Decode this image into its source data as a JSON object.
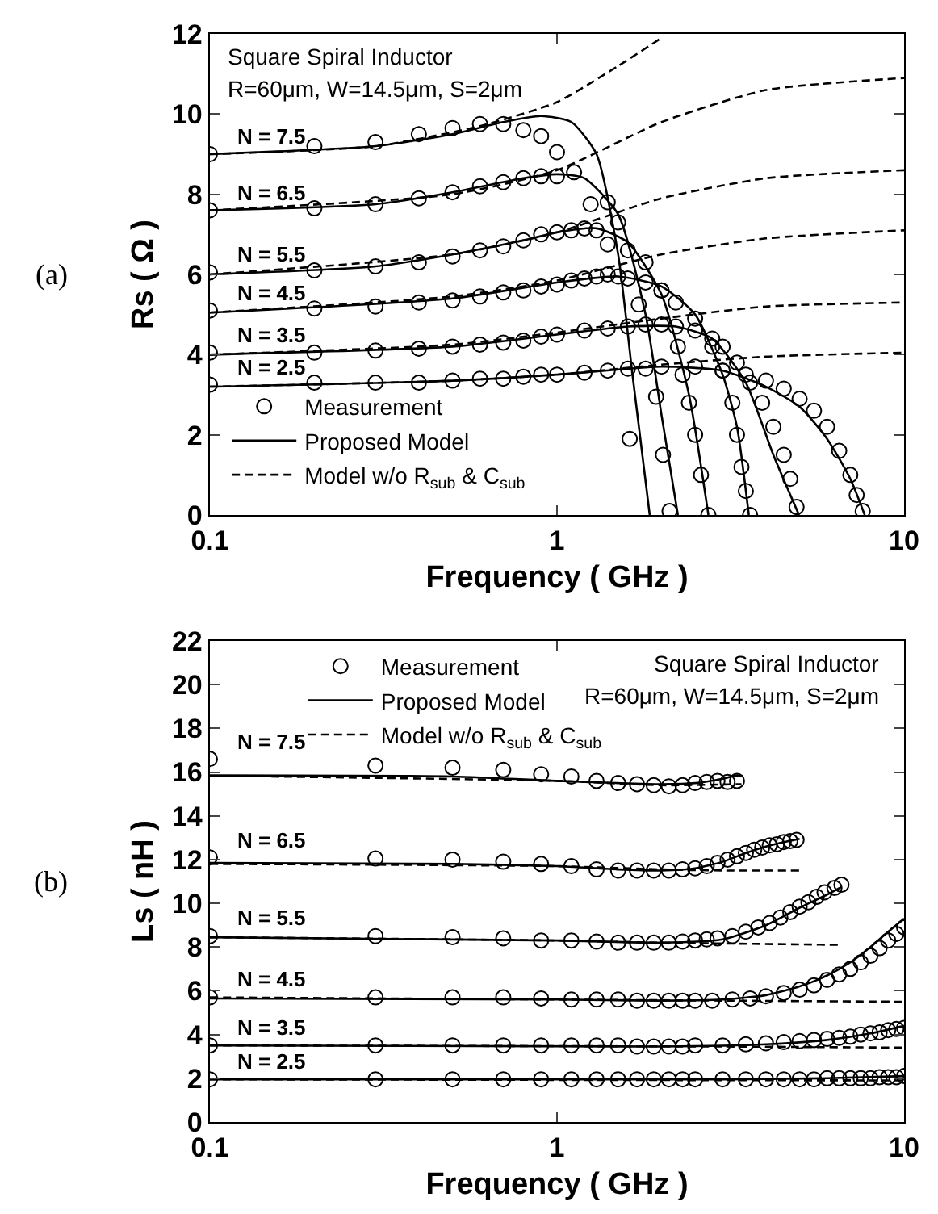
{
  "chart_data": [
    {
      "type": "line",
      "xlabel": "Frequency ( GHz )",
      "ylabel": "Rs ( Ω )",
      "xlim": [
        0.1,
        10
      ],
      "ylim": [
        0,
        12
      ],
      "log": "x",
      "xticks": [
        0.1,
        1,
        10
      ],
      "yticks": [
        0,
        2,
        4,
        6,
        8,
        10,
        12
      ],
      "grid": false,
      "legend": "bottom left",
      "annotations": [
        "(a)",
        "Square Spiral Inductor",
        "R=60μm, W=14.5μm, S=2μm",
        "N = 7.5",
        "N = 6.5",
        "N = 5.5",
        "N = 4.5",
        "N = 3.5",
        "N = 2.5"
      ],
      "series": [
        {
          "name": "Measurement",
          "type": "scatter",
          "marker": "circle",
          "color": "#000000",
          "x": [
            0.1,
            0.2,
            0.3,
            0.4,
            0.5,
            0.6,
            0.7,
            0.8,
            0.9,
            1.0,
            1.12,
            1.62
          ],
          "values": [
            9.0,
            9.2,
            9.3,
            9.5,
            9.65,
            9.75,
            9.75,
            9.6,
            9.45,
            9.05,
            8.55,
            1.9
          ]
        },
        {
          "type": "scatter",
          "marker": "circle",
          "color": "#000000",
          "x": [
            0.1,
            0.2,
            0.3,
            0.4,
            0.5,
            0.6,
            0.7,
            0.8,
            0.9,
            1.0,
            1.25,
            1.4,
            1.5,
            1.72,
            1.93,
            2.02,
            2.11
          ],
          "values": [
            7.6,
            7.65,
            7.75,
            7.9,
            8.05,
            8.2,
            8.3,
            8.4,
            8.45,
            8.45,
            7.75,
            7.8,
            7.3,
            5.25,
            2.95,
            1.5,
            0.1
          ]
        },
        {
          "type": "scatter",
          "marker": "circle",
          "color": "#000000",
          "x": [
            0.1,
            0.2,
            0.3,
            0.4,
            0.5,
            0.6,
            0.7,
            0.8,
            0.9,
            1.0,
            1.1,
            1.2,
            1.3,
            1.4,
            1.6,
            1.8,
            2.0,
            2.23,
            2.3,
            2.4,
            2.5,
            2.6,
            2.73
          ],
          "values": [
            6.05,
            6.1,
            6.2,
            6.3,
            6.45,
            6.6,
            6.7,
            6.85,
            7.0,
            7.05,
            7.1,
            7.15,
            7.1,
            6.75,
            6.6,
            6.3,
            5.6,
            4.2,
            3.5,
            2.8,
            2.0,
            1.0,
            0.0
          ]
        },
        {
          "type": "scatter",
          "marker": "circle",
          "color": "#000000",
          "x": [
            0.1,
            0.2,
            0.3,
            0.4,
            0.5,
            0.6,
            0.7,
            0.8,
            0.9,
            1.0,
            1.1,
            1.2,
            1.3,
            1.4,
            1.5,
            1.6,
            1.8,
            2.0,
            2.2,
            2.5,
            2.8,
            3.0,
            3.2,
            3.3,
            3.4,
            3.5,
            3.6
          ],
          "values": [
            5.1,
            5.15,
            5.2,
            5.3,
            5.35,
            5.45,
            5.55,
            5.6,
            5.7,
            5.75,
            5.85,
            5.9,
            5.95,
            6.0,
            5.95,
            5.9,
            5.8,
            5.6,
            5.3,
            4.9,
            4.2,
            3.6,
            2.8,
            2.0,
            1.2,
            0.6,
            0.0
          ]
        },
        {
          "type": "scatter",
          "marker": "circle",
          "color": "#000000",
          "x": [
            0.1,
            0.2,
            0.3,
            0.4,
            0.5,
            0.6,
            0.7,
            0.8,
            0.9,
            1.0,
            1.2,
            1.4,
            1.6,
            1.8,
            2.0,
            2.2,
            2.5,
            2.8,
            3.0,
            3.3,
            3.6,
            3.9,
            4.2,
            4.5,
            4.7,
            4.9
          ],
          "values": [
            4.05,
            4.05,
            4.1,
            4.15,
            4.2,
            4.25,
            4.3,
            4.35,
            4.45,
            4.5,
            4.6,
            4.65,
            4.7,
            4.75,
            4.75,
            4.7,
            4.6,
            4.4,
            4.2,
            3.8,
            3.3,
            2.8,
            2.2,
            1.5,
            0.9,
            0.2
          ]
        },
        {
          "type": "scatter",
          "marker": "circle",
          "color": "#000000",
          "x": [
            0.1,
            0.2,
            0.3,
            0.4,
            0.5,
            0.6,
            0.7,
            0.8,
            0.9,
            1.0,
            1.2,
            1.4,
            1.6,
            1.8,
            2.0,
            2.5,
            3.0,
            3.5,
            4.0,
            4.5,
            5.0,
            5.5,
            6.0,
            6.5,
            7.0,
            7.3,
            7.6
          ],
          "values": [
            3.25,
            3.3,
            3.3,
            3.3,
            3.35,
            3.4,
            3.4,
            3.45,
            3.5,
            3.5,
            3.55,
            3.6,
            3.65,
            3.65,
            3.7,
            3.7,
            3.6,
            3.5,
            3.35,
            3.15,
            2.9,
            2.6,
            2.2,
            1.6,
            1.0,
            0.5,
            0.1
          ]
        },
        {
          "name": "Proposed Model",
          "line_style": "solid",
          "color": "#000000",
          "x": [
            0.1,
            0.3,
            0.5,
            0.7,
            0.9,
            1.1,
            1.3,
            1.5,
            1.65,
            1.85
          ],
          "values": [
            9.0,
            9.2,
            9.5,
            9.8,
            9.95,
            9.8,
            9.0,
            6.5,
            3.5,
            0
          ]
        },
        {
          "line_style": "solid",
          "color": "#000000",
          "x": [
            0.1,
            0.3,
            0.5,
            0.8,
            1.0,
            1.2,
            1.5,
            1.8,
            2.0,
            2.23
          ],
          "values": [
            7.6,
            7.75,
            8.05,
            8.4,
            8.5,
            8.4,
            7.5,
            5.0,
            2.5,
            0
          ]
        },
        {
          "line_style": "solid",
          "color": "#000000",
          "x": [
            0.1,
            0.3,
            0.5,
            0.8,
            1.0,
            1.3,
            1.6,
            2.0,
            2.4,
            2.73
          ],
          "values": [
            6.0,
            6.2,
            6.5,
            6.85,
            7.05,
            7.15,
            6.8,
            5.5,
            3.0,
            0
          ]
        },
        {
          "line_style": "solid",
          "color": "#000000",
          "x": [
            0.1,
            0.5,
            1.0,
            1.5,
            2.0,
            2.5,
            3.0,
            3.3,
            3.57
          ],
          "values": [
            5.05,
            5.4,
            5.8,
            5.95,
            5.7,
            5.0,
            3.5,
            2.2,
            0
          ]
        },
        {
          "line_style": "solid",
          "color": "#000000",
          "x": [
            0.1,
            0.5,
            1.0,
            1.6,
            2.2,
            2.8,
            3.5,
            4.2,
            4.98
          ],
          "values": [
            4.0,
            4.2,
            4.5,
            4.7,
            4.7,
            4.4,
            3.3,
            1.5,
            0
          ]
        },
        {
          "line_style": "solid",
          "color": "#000000",
          "x": [
            0.1,
            0.5,
            1.0,
            2.0,
            3.0,
            4.0,
            5.0,
            6.0,
            7.0,
            7.7
          ],
          "values": [
            3.2,
            3.35,
            3.5,
            3.7,
            3.6,
            3.2,
            2.7,
            1.9,
            0.9,
            0
          ]
        },
        {
          "name": "Model w/o R$_{sub}$ & C$_{sub}$",
          "line_style": "dashed",
          "color": "#000000",
          "x": [
            0.1,
            0.3,
            0.6,
            1.0,
            1.5,
            2.0
          ],
          "values": [
            9.0,
            9.2,
            9.7,
            10.3,
            11.2,
            11.9
          ]
        },
        {
          "line_style": "dashed",
          "color": "#000000",
          "x": [
            0.1,
            0.5,
            1.0,
            2.0,
            4.0,
            10.0
          ],
          "values": [
            7.6,
            8.0,
            8.6,
            9.8,
            10.6,
            10.9
          ]
        },
        {
          "line_style": "dashed",
          "color": "#000000",
          "x": [
            0.1,
            0.5,
            1.0,
            2.0,
            4.0,
            10.0
          ],
          "values": [
            6.0,
            6.5,
            7.05,
            7.9,
            8.4,
            8.6
          ]
        },
        {
          "line_style": "dashed",
          "color": "#000000",
          "x": [
            0.1,
            0.5,
            1.0,
            2.0,
            4.0,
            10.0
          ],
          "values": [
            5.05,
            5.45,
            5.85,
            6.5,
            6.9,
            7.1
          ]
        },
        {
          "line_style": "dashed",
          "color": "#000000",
          "x": [
            0.1,
            0.5,
            1.0,
            2.0,
            4.0,
            10.0
          ],
          "values": [
            4.0,
            4.25,
            4.55,
            4.9,
            5.2,
            5.3
          ]
        },
        {
          "line_style": "dashed",
          "color": "#000000",
          "x": [
            0.1,
            0.5,
            1.0,
            2.0,
            4.0,
            10.0
          ],
          "values": [
            3.2,
            3.35,
            3.5,
            3.75,
            3.95,
            4.05
          ]
        }
      ]
    },
    {
      "type": "line",
      "xlabel": "Frequency ( GHz )",
      "ylabel": "Ls ( nH )",
      "xlim": [
        0.1,
        10
      ],
      "ylim": [
        0,
        22
      ],
      "log": "x",
      "xticks": [
        0.1,
        1,
        10
      ],
      "yticks": [
        0,
        2,
        4,
        6,
        8,
        10,
        12,
        14,
        16,
        18,
        20,
        22
      ],
      "grid": false,
      "legend": "top left",
      "annotations": [
        "(b)",
        "Square Spiral Inductor",
        "R=60μm, W=14.5μm, S=2μm",
        "N = 7.5",
        "N = 6.5",
        "N = 5.5",
        "N = 4.5",
        "N = 3.5",
        "N = 2.5"
      ],
      "series": [
        {
          "name": "Measurement",
          "type": "scatter",
          "marker": "circle",
          "color": "#000000",
          "x": [
            0.1,
            0.3,
            0.5,
            0.7,
            0.9,
            1.1,
            1.3,
            1.5,
            1.7,
            1.9,
            2.1,
            2.3,
            2.5,
            2.7,
            2.9,
            3.1,
            3.3
          ],
          "values": [
            16.6,
            16.3,
            16.2,
            16.1,
            15.9,
            15.8,
            15.6,
            15.5,
            15.45,
            15.4,
            15.35,
            15.4,
            15.5,
            15.55,
            15.6,
            15.55,
            15.6
          ]
        },
        {
          "type": "scatter",
          "marker": "circle",
          "color": "#000000",
          "x": [
            0.1,
            0.3,
            0.5,
            0.7,
            0.9,
            1.1,
            1.3,
            1.5,
            1.7,
            1.9,
            2.1,
            2.3,
            2.5,
            2.7,
            2.9,
            3.1,
            3.3,
            3.5,
            3.7,
            3.9,
            4.1,
            4.3,
            4.5,
            4.7,
            4.9
          ],
          "values": [
            12.1,
            12.05,
            12.0,
            11.9,
            11.8,
            11.7,
            11.55,
            11.5,
            11.5,
            11.5,
            11.5,
            11.55,
            11.6,
            11.7,
            11.85,
            12.0,
            12.15,
            12.3,
            12.45,
            12.55,
            12.65,
            12.7,
            12.8,
            12.85,
            12.9
          ]
        },
        {
          "type": "scatter",
          "marker": "circle",
          "color": "#000000",
          "x": [
            0.1,
            0.3,
            0.5,
            0.7,
            0.9,
            1.1,
            1.3,
            1.5,
            1.7,
            1.9,
            2.1,
            2.3,
            2.5,
            2.7,
            2.9,
            3.2,
            3.5,
            3.8,
            4.1,
            4.4,
            4.7,
            5.0,
            5.3,
            5.6,
            5.9,
            6.3,
            6.6
          ],
          "values": [
            8.5,
            8.5,
            8.45,
            8.4,
            8.3,
            8.3,
            8.25,
            8.2,
            8.2,
            8.2,
            8.2,
            8.25,
            8.3,
            8.35,
            8.4,
            8.5,
            8.7,
            8.9,
            9.1,
            9.35,
            9.6,
            9.85,
            10.05,
            10.3,
            10.5,
            10.7,
            10.85
          ]
        },
        {
          "type": "scatter",
          "marker": "circle",
          "color": "#000000",
          "x": [
            0.1,
            0.3,
            0.5,
            0.7,
            0.9,
            1.1,
            1.3,
            1.5,
            1.7,
            1.9,
            2.1,
            2.3,
            2.5,
            2.8,
            3.2,
            3.6,
            4.0,
            4.5,
            5.0,
            5.5,
            6.0,
            6.5,
            7.0,
            7.5,
            8.0,
            8.5,
            9.0,
            9.5,
            10
          ],
          "values": [
            5.7,
            5.7,
            5.7,
            5.7,
            5.65,
            5.6,
            5.6,
            5.6,
            5.55,
            5.55,
            5.55,
            5.55,
            5.55,
            5.55,
            5.6,
            5.65,
            5.75,
            5.9,
            6.05,
            6.25,
            6.5,
            6.75,
            7.0,
            7.3,
            7.6,
            7.95,
            8.3,
            8.6,
            8.9
          ]
        },
        {
          "type": "scatter",
          "marker": "circle",
          "color": "#000000",
          "x": [
            0.1,
            0.3,
            0.5,
            0.7,
            0.9,
            1.1,
            1.3,
            1.5,
            1.7,
            1.9,
            2.1,
            2.3,
            2.5,
            3,
            3.5,
            4,
            4.5,
            5,
            5.5,
            6,
            6.5,
            7,
            7.5,
            8,
            8.5,
            9,
            9.5,
            10
          ],
          "values": [
            3.5,
            3.5,
            3.5,
            3.5,
            3.5,
            3.5,
            3.5,
            3.5,
            3.45,
            3.45,
            3.45,
            3.45,
            3.5,
            3.5,
            3.55,
            3.6,
            3.65,
            3.7,
            3.75,
            3.8,
            3.85,
            3.9,
            4.0,
            4.05,
            4.1,
            4.2,
            4.25,
            4.3
          ]
        },
        {
          "type": "scatter",
          "marker": "circle",
          "color": "#000000",
          "x": [
            0.1,
            0.3,
            0.5,
            0.7,
            0.9,
            1.1,
            1.3,
            1.5,
            1.7,
            1.9,
            2.1,
            2.3,
            2.5,
            3,
            3.5,
            4,
            4.5,
            5,
            5.5,
            6,
            6.5,
            7,
            7.5,
            8,
            8.5,
            9,
            9.5,
            10
          ],
          "values": [
            1.95,
            1.95,
            1.95,
            1.95,
            1.95,
            1.95,
            1.95,
            1.95,
            1.95,
            1.95,
            1.95,
            1.95,
            1.95,
            1.95,
            1.95,
            1.95,
            1.95,
            1.95,
            1.95,
            2.0,
            2.0,
            2.0,
            2.0,
            2.0,
            2.05,
            2.05,
            2.05,
            2.1
          ]
        },
        {
          "name": "Proposed Model",
          "line_style": "solid",
          "color": "#000000",
          "x": [
            0.1,
            0.5,
            1.0,
            1.5,
            2.0,
            2.5,
            3.0,
            3.3,
            3.4
          ],
          "values": [
            15.85,
            15.8,
            15.6,
            15.5,
            15.45,
            15.5,
            15.7,
            15.85,
            15.8
          ]
        },
        {
          "line_style": "solid",
          "color": "#000000",
          "x": [
            0.1,
            0.5,
            1.0,
            1.5,
            2.0,
            2.5,
            3.0,
            3.5,
            4.0,
            4.5,
            5.0
          ],
          "values": [
            11.85,
            11.8,
            11.7,
            11.55,
            11.5,
            11.6,
            11.9,
            12.3,
            12.6,
            12.8,
            12.95
          ]
        },
        {
          "line_style": "solid",
          "color": "#000000",
          "x": [
            0.1,
            1.0,
            2.0,
            3.0,
            4.0,
            5.0,
            6.0,
            6.6
          ],
          "values": [
            8.45,
            8.3,
            8.2,
            8.35,
            9.0,
            9.8,
            10.4,
            10.75
          ]
        },
        {
          "line_style": "solid",
          "color": "#000000",
          "x": [
            0.1,
            1.0,
            2.0,
            3.0,
            4.0,
            5.0,
            6.0,
            7.0,
            8.0,
            9.0,
            10.0
          ],
          "values": [
            5.65,
            5.6,
            5.55,
            5.6,
            5.8,
            6.2,
            6.7,
            7.3,
            8.0,
            8.7,
            9.3
          ]
        },
        {
          "line_style": "solid",
          "color": "#000000",
          "x": [
            0.1,
            2.0,
            4.0,
            6.0,
            8.0,
            10.0
          ],
          "values": [
            3.5,
            3.45,
            3.55,
            3.75,
            4.05,
            4.4
          ]
        },
        {
          "line_style": "solid",
          "color": "#000000",
          "x": [
            0.1,
            3.0,
            6.0,
            10.0
          ],
          "values": [
            1.95,
            1.95,
            2.0,
            2.1
          ]
        },
        {
          "name": "Model w/o R$_{sub}$ & C$_{sub}$",
          "line_style": "dashed",
          "color": "#000000",
          "x": [
            0.15,
            1.0,
            2.0,
            3.4
          ],
          "values": [
            15.8,
            15.6,
            15.4,
            15.45
          ]
        },
        {
          "line_style": "dashed",
          "color": "#000000",
          "x": [
            0.1,
            1.0,
            2.0,
            3.0,
            5.0
          ],
          "values": [
            11.8,
            11.7,
            11.55,
            11.5,
            11.5
          ]
        },
        {
          "line_style": "dashed",
          "color": "#000000",
          "x": [
            0.1,
            1.0,
            2.0,
            6.6
          ],
          "values": [
            8.45,
            8.3,
            8.2,
            8.1
          ]
        },
        {
          "line_style": "dashed",
          "color": "#000000",
          "x": [
            0.1,
            1.0,
            3.0,
            10.0
          ],
          "values": [
            5.7,
            5.6,
            5.55,
            5.5
          ]
        },
        {
          "line_style": "dashed",
          "color": "#000000",
          "x": [
            0.1,
            3.0,
            10.0
          ],
          "values": [
            3.5,
            3.45,
            3.4
          ]
        },
        {
          "line_style": "dashed",
          "color": "#000000",
          "x": [
            0.1,
            10.0
          ],
          "values": [
            1.95,
            1.9
          ]
        }
      ]
    }
  ]
}
